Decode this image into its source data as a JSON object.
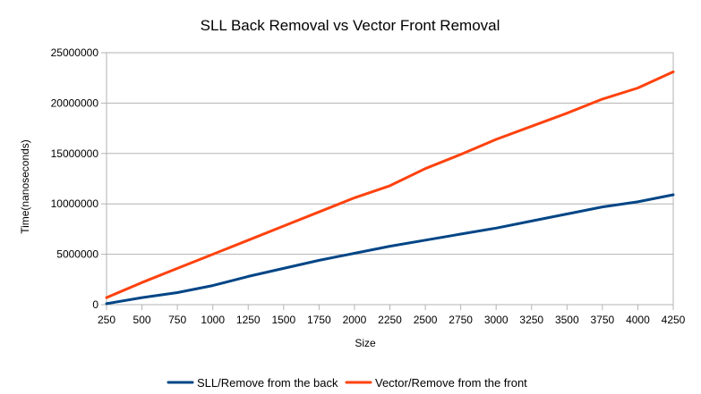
{
  "chart_data": {
    "type": "line",
    "title": "SLL Back Removal vs Vector Front Removal",
    "xlabel": "Size",
    "ylabel": "Time(nanoseconds)",
    "x": [
      250,
      500,
      750,
      1000,
      1250,
      1500,
      1750,
      2000,
      2250,
      2500,
      2750,
      3000,
      3250,
      3500,
      3750,
      4000,
      4250
    ],
    "x_tick_labels": [
      "250",
      "500",
      "750",
      "1000",
      "1250",
      "1500",
      "1750",
      "2000",
      "2250",
      "2500",
      "2750",
      "3000",
      "3250",
      "3500",
      "3750",
      "4000",
      "4250"
    ],
    "ylim": [
      0,
      25000000
    ],
    "y_ticks": [
      0,
      5000000,
      10000000,
      15000000,
      20000000,
      25000000
    ],
    "y_tick_labels": [
      "0",
      "5000000",
      "10000000",
      "15000000",
      "20000000",
      "25000000"
    ],
    "grid": true,
    "legend": "bottom",
    "series": [
      {
        "name": "SLL/Remove from the back",
        "color": "#004586",
        "values": [
          100000,
          700000,
          1200000,
          1900000,
          2800000,
          3600000,
          4400000,
          5100000,
          5800000,
          6400000,
          7000000,
          7600000,
          8300000,
          9000000,
          9700000,
          10200000,
          10900000
        ]
      },
      {
        "name": "Vector/Remove from the front",
        "color": "#ff420e",
        "values": [
          700000,
          2200000,
          3600000,
          5000000,
          6400000,
          7800000,
          9200000,
          10600000,
          11800000,
          13500000,
          14900000,
          16400000,
          17700000,
          19000000,
          20400000,
          21500000,
          23100000
        ]
      }
    ]
  }
}
